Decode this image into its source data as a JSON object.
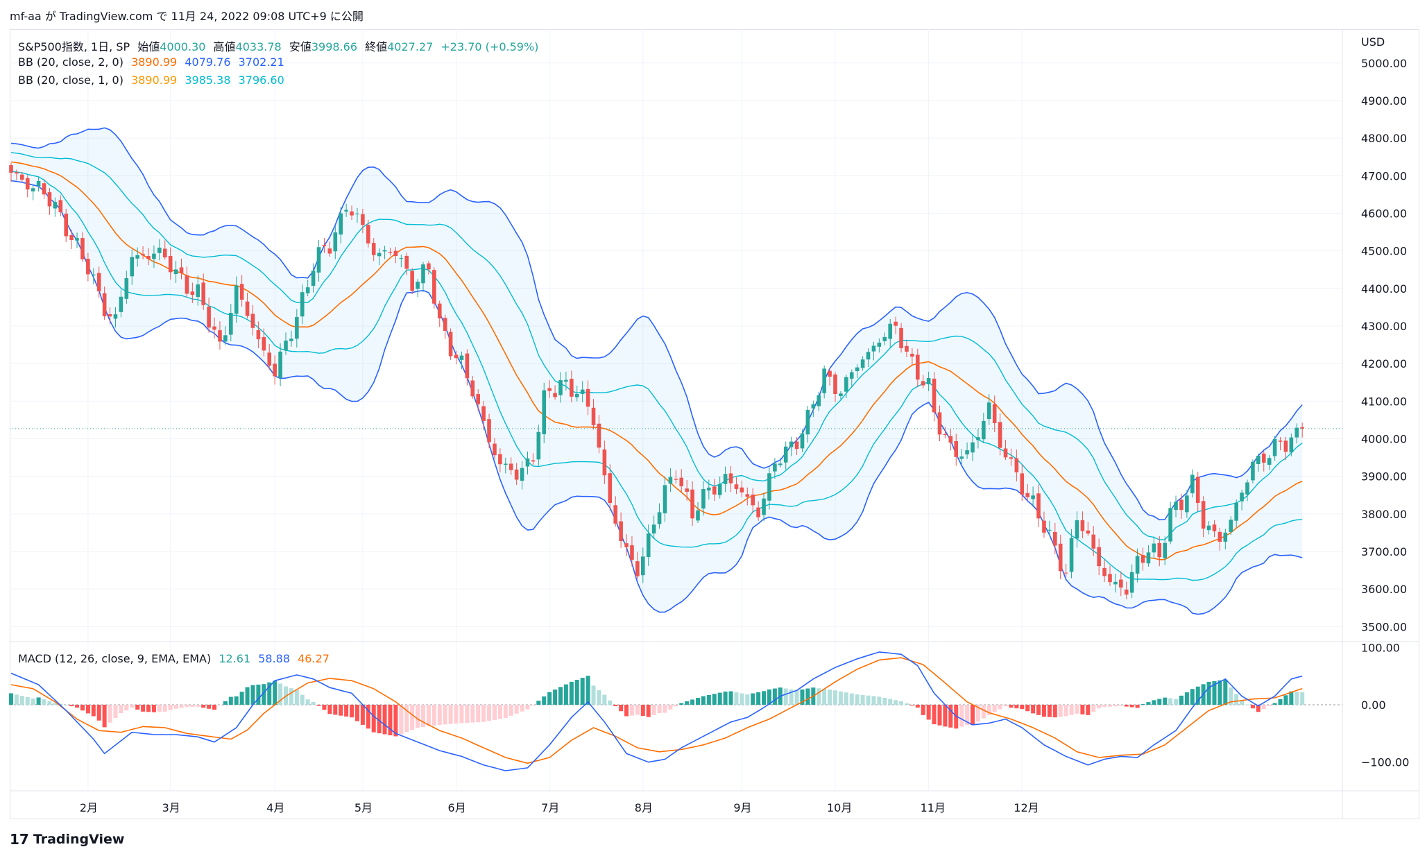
{
  "header": {
    "author": "mf-aa",
    "text": "が TradingView.com で 11月 24, 2022 09:08 UTC+9 に公開"
  },
  "legend": {
    "symbol": "S&P500指数, 1日, SP",
    "open_label": "始値",
    "open": "4000.30",
    "high_label": "高値",
    "high": "4033.78",
    "low_label": "安値",
    "low": "3998.66",
    "close_label": "終値",
    "close": "4027.27",
    "change": "+23.70 (+0.59%)",
    "bb2": {
      "label": "BB (20, close, 2, 0)",
      "basis": "3890.99",
      "upper": "4079.76",
      "lower": "3702.21"
    },
    "bb1": {
      "label": "BB (20, close, 1, 0)",
      "basis": "3890.99",
      "upper": "3985.38",
      "lower": "3796.60"
    },
    "macd": {
      "label": "MACD (12, 26, close, 9, EMA, EMA)",
      "hist": "12.61",
      "macd": "58.88",
      "signal": "46.27"
    }
  },
  "footer": {
    "brand": "TradingView"
  },
  "colors": {
    "up": "#26a69a",
    "down": "#ef5350",
    "basis": "#ff6d00",
    "bb2": "#2962ff",
    "bb1": "#00bcd4",
    "hist_up": "#26a69a",
    "hist_up_light": "#b2dfdb",
    "hist_down": "#ff5252",
    "hist_down_light": "#ffcdd2"
  },
  "chart_data": {
    "type": "candlestick",
    "currency": "USD",
    "price_ticks": [
      "5000.00",
      "4900.00",
      "4800.00",
      "4700.00",
      "4600.00",
      "4500.00",
      "4400.00",
      "4300.00",
      "4200.00",
      "4100.00",
      "4000.00",
      "3900.00",
      "3800.00",
      "3700.00",
      "3600.00",
      "3500.00"
    ],
    "price_range": [
      3460,
      5090
    ],
    "macd_ticks": [
      "100.00",
      "0.00",
      "−100.00"
    ],
    "macd_range": [
      -150,
      110
    ],
    "months": [
      "2月",
      "3月",
      "4月",
      "5月",
      "6月",
      "7月",
      "8月",
      "9月",
      "10月",
      "11月",
      "12月"
    ],
    "close_path": [
      [
        0,
        4700
      ],
      [
        5,
        4670
      ],
      [
        10,
        4570
      ],
      [
        14,
        4450
      ],
      [
        17,
        4350
      ],
      [
        19,
        4320
      ],
      [
        22,
        4480
      ],
      [
        26,
        4500
      ],
      [
        29,
        4460
      ],
      [
        34,
        4380
      ],
      [
        38,
        4250
      ],
      [
        41,
        4390
      ],
      [
        44,
        4300
      ],
      [
        48,
        4170
      ],
      [
        52,
        4330
      ],
      [
        55,
        4460
      ],
      [
        58,
        4520
      ],
      [
        61,
        4620
      ],
      [
        64,
        4560
      ],
      [
        66,
        4500
      ],
      [
        70,
        4490
      ],
      [
        73,
        4420
      ],
      [
        76,
        4450
      ],
      [
        78,
        4300
      ],
      [
        82,
        4200
      ],
      [
        85,
        4080
      ],
      [
        89,
        3930
      ],
      [
        92,
        3900
      ],
      [
        95,
        3960
      ],
      [
        97,
        4100
      ],
      [
        100,
        4150
      ],
      [
        103,
        4130
      ],
      [
        106,
        4050
      ],
      [
        108,
        3900
      ],
      [
        111,
        3720
      ],
      [
        114,
        3650
      ],
      [
        117,
        3780
      ],
      [
        121,
        3920
      ],
      [
        124,
        3800
      ],
      [
        127,
        3860
      ],
      [
        130,
        3900
      ],
      [
        133,
        3850
      ],
      [
        136,
        3810
      ],
      [
        139,
        3930
      ],
      [
        142,
        3980
      ],
      [
        145,
        4050
      ],
      [
        148,
        4170
      ],
      [
        151,
        4130
      ],
      [
        155,
        4210
      ],
      [
        158,
        4270
      ],
      [
        161,
        4290
      ],
      [
        163,
        4230
      ],
      [
        165,
        4180
      ],
      [
        167,
        4130
      ],
      [
        168,
        4060
      ],
      [
        171,
        3980
      ],
      [
        174,
        3950
      ],
      [
        176,
        4010
      ],
      [
        178,
        4100
      ],
      [
        180,
        3980
      ],
      [
        183,
        3900
      ],
      [
        186,
        3830
      ],
      [
        189,
        3730
      ],
      [
        192,
        3650
      ],
      [
        194,
        3790
      ],
      [
        197,
        3700
      ],
      [
        200,
        3620
      ],
      [
        203,
        3590
      ],
      [
        205,
        3680
      ],
      [
        207,
        3710
      ],
      [
        209,
        3680
      ],
      [
        211,
        3800
      ],
      [
        214,
        3860
      ],
      [
        215,
        3880
      ],
      [
        217,
        3770
      ],
      [
        220,
        3740
      ],
      [
        222,
        3780
      ],
      [
        224,
        3850
      ],
      [
        226,
        3940
      ],
      [
        229,
        3960
      ],
      [
        232,
        3990
      ],
      [
        235,
        4027
      ]
    ],
    "macd_path": [
      [
        0,
        55
      ],
      [
        5,
        35
      ],
      [
        10,
        -10
      ],
      [
        15,
        -60
      ],
      [
        17,
        -85
      ],
      [
        22,
        -48
      ],
      [
        26,
        -52
      ],
      [
        30,
        -52
      ],
      [
        34,
        -56
      ],
      [
        37,
        -65
      ],
      [
        41,
        -40
      ],
      [
        44,
        0
      ],
      [
        48,
        42
      ],
      [
        52,
        52
      ],
      [
        55,
        45
      ],
      [
        58,
        30
      ],
      [
        62,
        20
      ],
      [
        66,
        -20
      ],
      [
        70,
        -50
      ],
      [
        74,
        -65
      ],
      [
        78,
        -80
      ],
      [
        82,
        -90
      ],
      [
        86,
        -105
      ],
      [
        90,
        -115
      ],
      [
        94,
        -110
      ],
      [
        98,
        -70
      ],
      [
        102,
        -22
      ],
      [
        105,
        5
      ],
      [
        108,
        -30
      ],
      [
        112,
        -85
      ],
      [
        116,
        -100
      ],
      [
        119,
        -95
      ],
      [
        122,
        -75
      ],
      [
        125,
        -60
      ],
      [
        128,
        -45
      ],
      [
        131,
        -30
      ],
      [
        134,
        -22
      ],
      [
        137,
        -5
      ],
      [
        140,
        15
      ],
      [
        143,
        25
      ],
      [
        146,
        45
      ],
      [
        150,
        65
      ],
      [
        154,
        80
      ],
      [
        158,
        92
      ],
      [
        162,
        88
      ],
      [
        165,
        68
      ],
      [
        168,
        20
      ],
      [
        172,
        -20
      ],
      [
        175,
        -35
      ],
      [
        178,
        -32
      ],
      [
        181,
        -25
      ],
      [
        184,
        -40
      ],
      [
        188,
        -70
      ],
      [
        192,
        -90
      ],
      [
        196,
        -105
      ],
      [
        199,
        -95
      ],
      [
        202,
        -90
      ],
      [
        205,
        -92
      ],
      [
        208,
        -70
      ],
      [
        212,
        -45
      ],
      [
        215,
        -5
      ],
      [
        218,
        30
      ],
      [
        221,
        45
      ],
      [
        224,
        15
      ],
      [
        227,
        -2
      ],
      [
        230,
        15
      ],
      [
        233,
        45
      ],
      [
        237,
        55
      ],
      [
        243,
        58.88
      ]
    ],
    "signal_path": [
      [
        0,
        35
      ],
      [
        4,
        28
      ],
      [
        8,
        5
      ],
      [
        12,
        -25
      ],
      [
        16,
        -45
      ],
      [
        20,
        -48
      ],
      [
        24,
        -38
      ],
      [
        28,
        -40
      ],
      [
        32,
        -50
      ],
      [
        36,
        -55
      ],
      [
        40,
        -60
      ],
      [
        43,
        -44
      ],
      [
        46,
        -15
      ],
      [
        50,
        15
      ],
      [
        54,
        38
      ],
      [
        58,
        46
      ],
      [
        62,
        42
      ],
      [
        66,
        28
      ],
      [
        70,
        5
      ],
      [
        74,
        -25
      ],
      [
        78,
        -45
      ],
      [
        82,
        -58
      ],
      [
        86,
        -75
      ],
      [
        90,
        -92
      ],
      [
        94,
        -102
      ],
      [
        98,
        -92
      ],
      [
        102,
        -62
      ],
      [
        106,
        -40
      ],
      [
        110,
        -55
      ],
      [
        114,
        -75
      ],
      [
        118,
        -82
      ],
      [
        122,
        -78
      ],
      [
        126,
        -70
      ],
      [
        130,
        -58
      ],
      [
        134,
        -40
      ],
      [
        138,
        -25
      ],
      [
        142,
        -5
      ],
      [
        146,
        15
      ],
      [
        150,
        40
      ],
      [
        154,
        62
      ],
      [
        158,
        78
      ],
      [
        162,
        82
      ],
      [
        166,
        70
      ],
      [
        170,
        38
      ],
      [
        174,
        5
      ],
      [
        178,
        -14
      ],
      [
        182,
        -25
      ],
      [
        186,
        -40
      ],
      [
        190,
        -58
      ],
      [
        194,
        -82
      ],
      [
        198,
        -92
      ],
      [
        202,
        -88
      ],
      [
        206,
        -86
      ],
      [
        210,
        -70
      ],
      [
        214,
        -40
      ],
      [
        218,
        -10
      ],
      [
        222,
        5
      ],
      [
        226,
        10
      ],
      [
        230,
        12
      ],
      [
        234,
        25
      ],
      [
        238,
        38
      ],
      [
        243,
        46.27
      ]
    ]
  }
}
